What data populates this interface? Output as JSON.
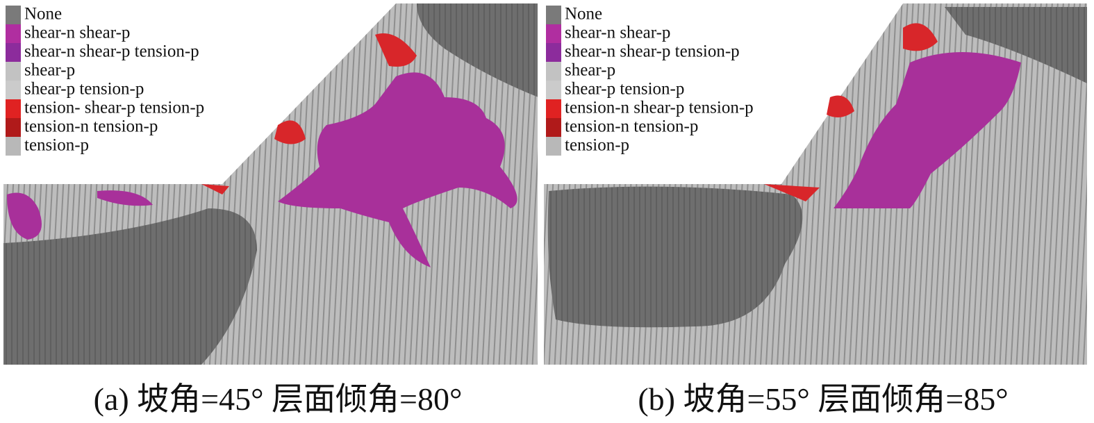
{
  "panels": [
    {
      "caption": "(a) 坡角=45° 层面倾角=80°",
      "legend": [
        {
          "label": "None",
          "color": "#7a7a7a"
        },
        {
          "label": "shear-n shear-p",
          "color": "#b02ea0"
        },
        {
          "label": "shear-n shear-p tension-p",
          "color": "#8c2c9c"
        },
        {
          "label": "shear-p",
          "color": "#c2c2c2"
        },
        {
          "label": "shear-p tension-p",
          "color": "#cbcbcb"
        },
        {
          "label": "tension- shear-p tension-p",
          "color": "#e02222"
        },
        {
          "label": "tension-n tension-p",
          "color": "#b01a1a"
        },
        {
          "label": "tension-p",
          "color": "#b8b8b8"
        }
      ]
    },
    {
      "caption": "(b) 坡角=55° 层面倾角=85°",
      "legend": [
        {
          "label": "None",
          "color": "#7a7a7a"
        },
        {
          "label": "shear-n shear-p",
          "color": "#b02ea0"
        },
        {
          "label": "shear-n shear-p tension-p",
          "color": "#8c2c9c"
        },
        {
          "label": "shear-p",
          "color": "#c2c2c2"
        },
        {
          "label": "shear-p tension-p",
          "color": "#cbcbcb"
        },
        {
          "label": "tension-n shear-p tension-p",
          "color": "#e02222"
        },
        {
          "label": "tension-n tension-p",
          "color": "#b01a1a"
        },
        {
          "label": "tension-p",
          "color": "#b8b8b8"
        }
      ]
    }
  ]
}
